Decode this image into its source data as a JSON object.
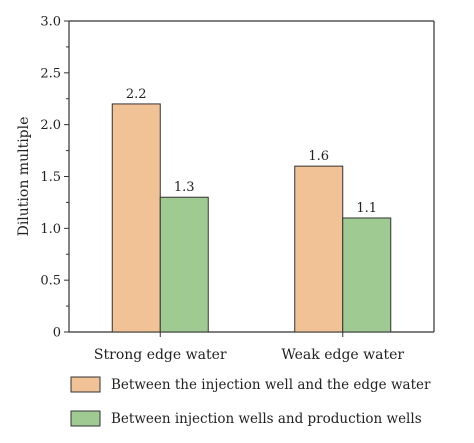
{
  "chart_data": {
    "type": "bar",
    "title": "",
    "xlabel": "",
    "ylabel": "Dilution multiple",
    "ylim": [
      0,
      3.0
    ],
    "yticks": [
      "0",
      "0.5",
      "1.0",
      "1.5",
      "2.0",
      "2.5",
      "3.0"
    ],
    "categories": [
      "Strong edge water",
      "Weak edge water"
    ],
    "series": [
      {
        "name": "Between the injection well and the edge water",
        "values": [
          2.2,
          1.6
        ],
        "value_labels": [
          "2.2",
          "1.6"
        ],
        "color": "#F2C297",
        "stroke": "#333333"
      },
      {
        "name": "Between injection wells and production wells",
        "values": [
          1.3,
          1.1
        ],
        "value_labels": [
          "1.3",
          "1.1"
        ],
        "color": "#9FCB93",
        "stroke": "#333333"
      }
    ],
    "grid": false,
    "legend_position": "bottom"
  }
}
